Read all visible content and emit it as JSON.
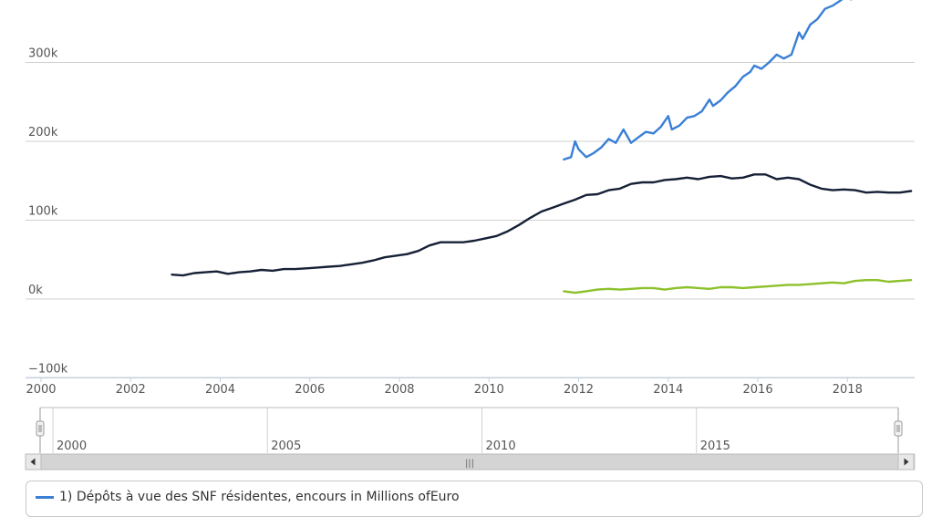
{
  "chart_data": {
    "type": "line",
    "y_ticks": [
      {
        "value": -100000,
        "label": "−100k"
      },
      {
        "value": 0,
        "label": "0k"
      },
      {
        "value": 100000,
        "label": "100k"
      },
      {
        "value": 200000,
        "label": "200k"
      },
      {
        "value": 300000,
        "label": "300k"
      }
    ],
    "x_ticks": [
      "2000",
      "2002",
      "2004",
      "2006",
      "2008",
      "2010",
      "2012",
      "2014",
      "2016",
      "2018"
    ],
    "xlim": [
      2000.0,
      2019.5
    ],
    "ylim": [
      -100000,
      370000
    ],
    "grid": true,
    "navigator_ticks": [
      "2000",
      "2005",
      "2010",
      "2015"
    ],
    "navigator_xlim": [
      2000.0,
      2020.0
    ],
    "series": [
      {
        "name": "1) Dépôts à vue des SNF résidentes, encours in Millions ofEuro",
        "color": "#3a7fd5",
        "x": [
          2011.67,
          2011.83,
          2011.92,
          2012.0,
          2012.17,
          2012.33,
          2012.5,
          2012.67,
          2012.83,
          2013.0,
          2013.17,
          2013.33,
          2013.5,
          2013.67,
          2013.83,
          2014.0,
          2014.08,
          2014.25,
          2014.42,
          2014.58,
          2014.75,
          2014.92,
          2015.0,
          2015.17,
          2015.33,
          2015.5,
          2015.67,
          2015.83,
          2015.92,
          2016.08,
          2016.25,
          2016.42,
          2016.58,
          2016.75,
          2016.92,
          2017.0,
          2017.17,
          2017.33,
          2017.5,
          2017.67,
          2017.83,
          2018.0,
          2018.08
        ],
        "values": [
          177000,
          180000,
          200000,
          190000,
          180000,
          185000,
          192000,
          203000,
          198000,
          215000,
          198000,
          205000,
          212000,
          210000,
          218000,
          232000,
          215000,
          220000,
          230000,
          232000,
          238000,
          253000,
          245000,
          252000,
          262000,
          270000,
          282000,
          288000,
          296000,
          292000,
          300000,
          310000,
          305000,
          310000,
          338000,
          330000,
          348000,
          355000,
          368000,
          372000,
          378000,
          385000,
          380000
        ]
      },
      {
        "name": "",
        "color": "#162036",
        "x": [
          2002.92,
          2003.17,
          2003.42,
          2003.67,
          2003.92,
          2004.17,
          2004.42,
          2004.67,
          2004.92,
          2005.17,
          2005.42,
          2005.67,
          2005.92,
          2006.17,
          2006.42,
          2006.67,
          2006.92,
          2007.17,
          2007.42,
          2007.67,
          2007.92,
          2008.17,
          2008.42,
          2008.67,
          2008.92,
          2009.17,
          2009.42,
          2009.67,
          2009.92,
          2010.17,
          2010.42,
          2010.67,
          2010.92,
          2011.17,
          2011.42,
          2011.67,
          2011.92,
          2012.17,
          2012.42,
          2012.67,
          2012.92,
          2013.17,
          2013.42,
          2013.67,
          2013.92,
          2014.17,
          2014.42,
          2014.67,
          2014.92,
          2015.17,
          2015.42,
          2015.67,
          2015.92,
          2016.17,
          2016.42,
          2016.67,
          2016.92,
          2017.17,
          2017.42,
          2017.67,
          2017.92,
          2018.17,
          2018.42,
          2018.67,
          2018.92,
          2019.17,
          2019.42
        ],
        "values": [
          31000,
          30000,
          33000,
          34000,
          35000,
          32000,
          34000,
          35000,
          37000,
          36000,
          38000,
          38000,
          39000,
          40000,
          41000,
          42000,
          44000,
          46000,
          49000,
          53000,
          55000,
          57000,
          61000,
          68000,
          72000,
          72000,
          72000,
          74000,
          77000,
          80000,
          86000,
          94000,
          103000,
          111000,
          116000,
          121000,
          126000,
          132000,
          133000,
          138000,
          140000,
          146000,
          148000,
          148000,
          151000,
          152000,
          154000,
          152000,
          155000,
          156000,
          153000,
          154000,
          158000,
          158000,
          152000,
          154000,
          152000,
          145000,
          140000,
          138000,
          139000,
          138000,
          135000,
          136000,
          135000,
          135000,
          137000
        ]
      },
      {
        "name": "",
        "color": "#8cc12b",
        "x": [
          2011.67,
          2011.92,
          2012.17,
          2012.42,
          2012.67,
          2012.92,
          2013.17,
          2013.42,
          2013.67,
          2013.92,
          2014.17,
          2014.42,
          2014.67,
          2014.92,
          2015.17,
          2015.42,
          2015.67,
          2015.92,
          2016.17,
          2016.42,
          2016.67,
          2016.92,
          2017.17,
          2017.42,
          2017.67,
          2017.92,
          2018.17,
          2018.42,
          2018.67,
          2018.92,
          2019.17,
          2019.42
        ],
        "values": [
          10000,
          8000,
          10000,
          12000,
          13000,
          12000,
          13000,
          14000,
          14000,
          12000,
          14000,
          15000,
          14000,
          13000,
          15000,
          15000,
          14000,
          15000,
          16000,
          17000,
          18000,
          18000,
          19000,
          20000,
          21000,
          20000,
          23000,
          24000,
          24000,
          22000,
          23000,
          24000
        ]
      }
    ]
  },
  "legend": {
    "label": "1) Dépôts à vue des SNF résidentes, encours in Millions ofEuro",
    "color": "#3a7fd5"
  },
  "navigator": {
    "scroll_grip": "|||"
  },
  "colors": {
    "grid": "#d0d0d0",
    "axis": "#c0d0e0",
    "navigator_fill": "#f4f4f4",
    "scrollbar_track": "#e6e6e6",
    "scrollbar_thumb": "#d4d4d4"
  }
}
